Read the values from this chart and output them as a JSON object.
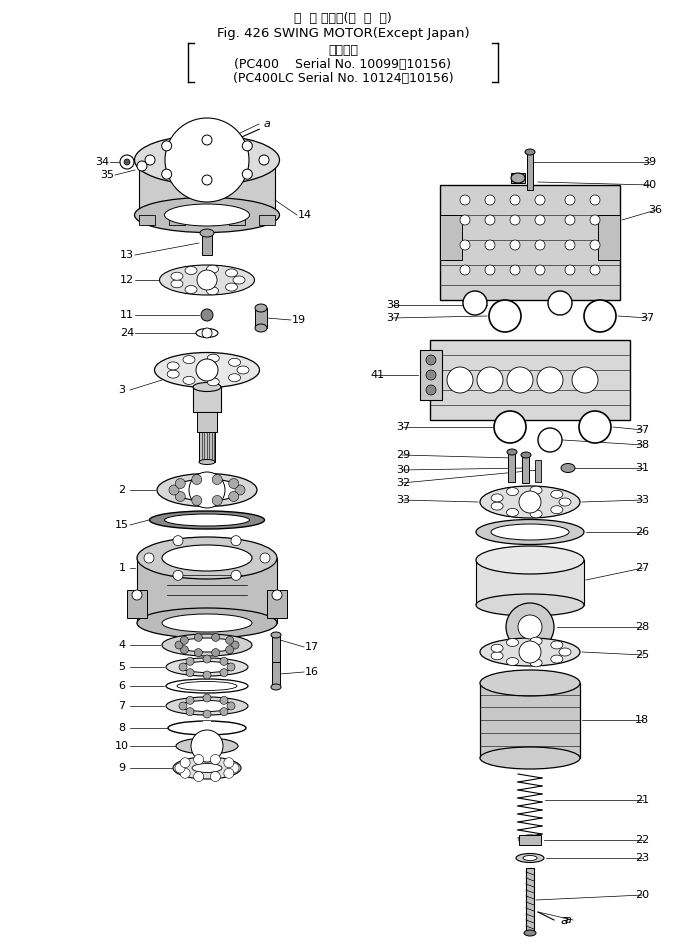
{
  "title_line1": "旋  回 モータ(海  外  向)",
  "title_line2": "Fig. 426 SWING MOTOR(Except Japan)",
  "title_line3": "通用号機",
  "title_line4": "(PC400    Serial No. 10099～10156)",
  "title_line5": "(PC400LC Serial No. 10124～10156)",
  "bg_color": "#ffffff",
  "figsize": [
    6.86,
    9.46
  ],
  "dpi": 100,
  "xlim": [
    0,
    686
  ],
  "ylim": [
    0,
    946
  ]
}
